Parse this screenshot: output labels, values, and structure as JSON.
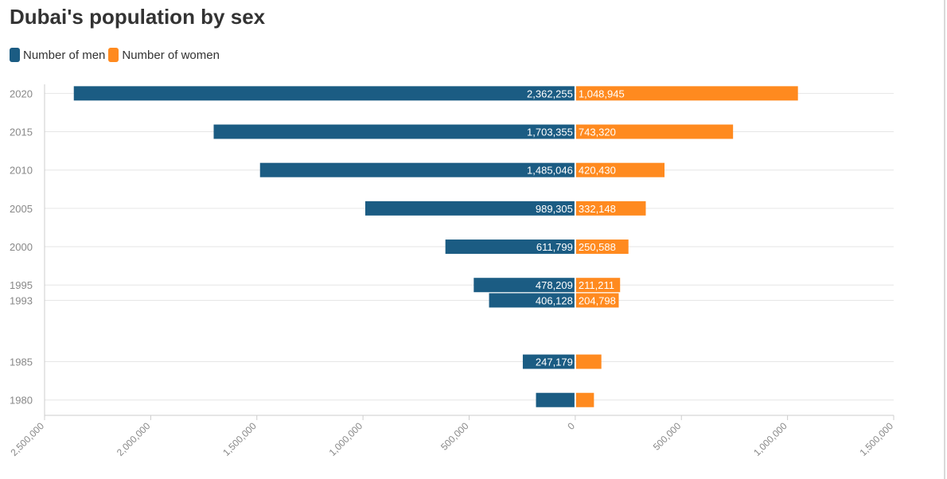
{
  "title": "Dubai's population by sex",
  "colors": {
    "men": "#1b5c83",
    "women": "#ff8a1f",
    "grid": "#e6e6e6",
    "axis": "#cccccc"
  },
  "legend": [
    {
      "label": "Number of men",
      "color": "#1b5c83"
    },
    {
      "label": "Number of women",
      "color": "#ff8a1f"
    }
  ],
  "chart_data": {
    "type": "bar",
    "orientation": "horizontal-diverging",
    "title": "Dubai's population by sex",
    "y": [
      2020,
      2015,
      2010,
      2005,
      2000,
      1995,
      1993,
      1985,
      1980
    ],
    "series": [
      {
        "name": "Number of men",
        "values": [
          2362255,
          1703355,
          1485046,
          989305,
          611799,
          478209,
          406128,
          247179,
          185000
        ],
        "labels": [
          "2,362,255",
          "1,703,355",
          "1,485,046",
          "989,305",
          "611,799",
          "478,209",
          "406,128",
          "247,179",
          ""
        ]
      },
      {
        "name": "Number of women",
        "values": [
          1048945,
          743320,
          420430,
          332148,
          250588,
          211211,
          204798,
          123000,
          88000
        ],
        "labels": [
          "1,048,945",
          "743,320",
          "420,430",
          "332,148",
          "250,588",
          "211,211",
          "204,798",
          "",
          ""
        ]
      }
    ],
    "xticks": [
      {
        "value": -2500000,
        "label": "2,500,000"
      },
      {
        "value": -2000000,
        "label": "2,000,000"
      },
      {
        "value": -1500000,
        "label": "1,500,000"
      },
      {
        "value": -1000000,
        "label": "1,000,000"
      },
      {
        "value": -500000,
        "label": "500,000"
      },
      {
        "value": 0,
        "label": "0"
      },
      {
        "value": 500000,
        "label": "500,000"
      },
      {
        "value": 1000000,
        "label": "1,000,000"
      },
      {
        "value": 1500000,
        "label": "1,500,000"
      }
    ],
    "xlim": [
      -2500000,
      1500000
    ],
    "ylim": [
      1978,
      2021.8
    ],
    "grid": true,
    "legend_position": "top-left"
  }
}
